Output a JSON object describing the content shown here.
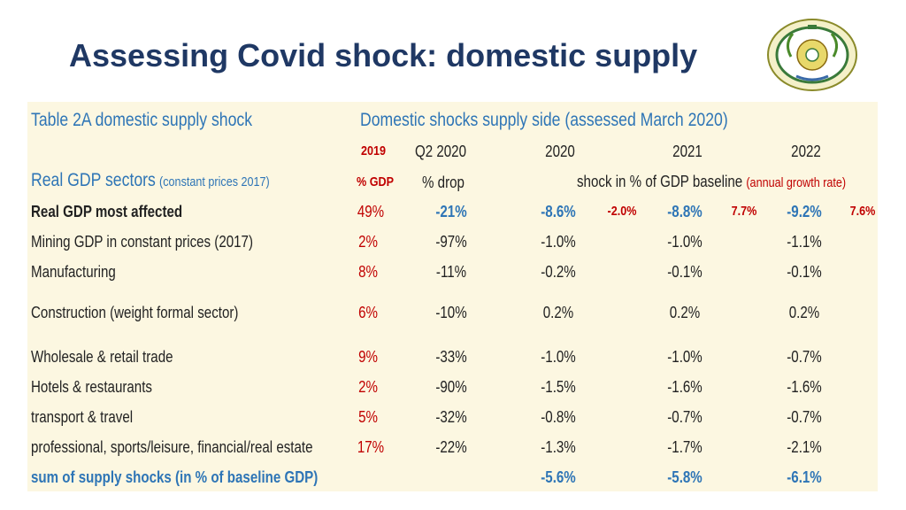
{
  "slide": {
    "title": "Assessing Covid shock: domestic supply"
  },
  "table": {
    "caption": "Table 2A domestic supply shock",
    "group_header": "Domestic shocks supply side (assessed March 2020)",
    "sectors_label": "Real GDP sectors",
    "sectors_note": "(constant prices 2017)",
    "col_headers": {
      "y2019": "2019",
      "q2_2020": "Q2  2020",
      "y2020": "2020",
      "y2021": "2021",
      "y2022": "2022"
    },
    "sub_headers": {
      "pct_gdp": "% GDP",
      "pct_drop": "% drop",
      "shock_label": "shock in % of GDP baseline",
      "growth_note": "(annual growth rate)"
    },
    "rows": [
      {
        "sector": "Real GDP most affected",
        "share": "49%",
        "drop": "-21%",
        "s2020": "-8.6%",
        "g2020": "-2.0%",
        "s2021": "-8.8%",
        "g2021": "7.7%",
        "s2022": "-9.2%",
        "g2022": "7.6%"
      },
      {
        "sector": "Mining GDP in constant prices (2017)",
        "share": "2%",
        "drop": "-97%",
        "s2020": "-1.0%",
        "s2021": "-1.0%",
        "s2022": "-1.1%"
      },
      {
        "sector": "Manufacturing",
        "share": "8%",
        "drop": "-11%",
        "s2020": "-0.2%",
        "s2021": "-0.1%",
        "s2022": "-0.1%"
      },
      {
        "sector": "Construction (weight formal sector)",
        "share": "6%",
        "drop": "-10%",
        "s2020": "0.2%",
        "s2021": "0.2%",
        "s2022": "0.2%"
      },
      {
        "sector": "Wholesale & retail trade",
        "share": "9%",
        "drop": "-33%",
        "s2020": "-1.0%",
        "s2021": "-1.0%",
        "s2022": "-0.7%"
      },
      {
        "sector": "Hotels & restaurants",
        "share": "2%",
        "drop": "-90%",
        "s2020": "-1.5%",
        "s2021": "-1.6%",
        "s2022": "-1.6%"
      },
      {
        "sector": "transport & travel",
        "share": "5%",
        "drop": "-32%",
        "s2020": "-0.8%",
        "s2021": "-0.7%",
        "s2022": "-0.7%"
      },
      {
        "sector": "professional, sports/leisure, financial/real estate",
        "share": "17%",
        "drop": "-22%",
        "s2020": "-1.3%",
        "s2021": "-1.7%",
        "s2022": "-2.1%"
      }
    ],
    "sum_row": {
      "label": "sum of supply shocks (in % of baseline GDP)",
      "s2020": "-5.6%",
      "s2021": "-5.8%",
      "s2022": "-6.1%"
    }
  },
  "colors": {
    "title": "#1f3864",
    "accent_blue": "#2e75b6",
    "accent_red": "#c00000",
    "panel_bg": "#fcf7e1"
  }
}
